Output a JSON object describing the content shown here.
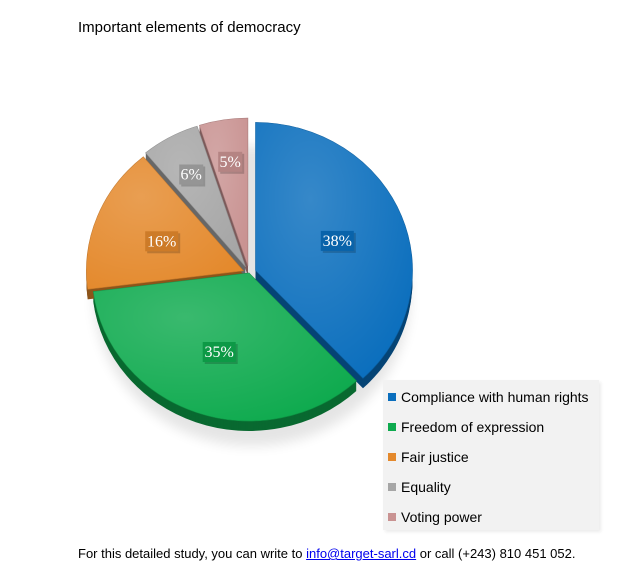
{
  "chart_data": {
    "type": "pie",
    "title": "Important elements of democracy",
    "categories": [
      "Compliance with human rights",
      "Freedom of expression",
      "Fair justice",
      "Equality",
      "Voting power"
    ],
    "values": [
      38,
      35,
      16,
      6,
      5
    ],
    "value_labels": [
      "38%",
      "35%",
      "16%",
      "6%",
      "5%"
    ],
    "colors": [
      "#0a6ebd",
      "#0eaa4e",
      "#e4892c",
      "#a6a6a6",
      "#c99392"
    ],
    "legend_position": "bottom-right",
    "exploded": true,
    "style": "3d"
  },
  "footer": {
    "text_before": "For this detailed study, you can write to ",
    "email": "info@target-sarl.cd",
    "text_after": " or call (+243) 810 451 052."
  }
}
